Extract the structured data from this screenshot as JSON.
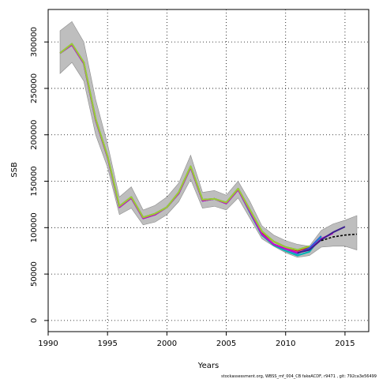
{
  "chart_data": {
    "type": "line",
    "xlabel": "Years",
    "ylabel": "SSB",
    "xlim": [
      1990,
      2017
    ],
    "ylim": [
      -12000,
      335000
    ],
    "x_ticks": [
      1990,
      1995,
      2000,
      2005,
      2010,
      2015
    ],
    "y_ticks": [
      0,
      50000,
      100000,
      150000,
      200000,
      250000,
      300000
    ],
    "grid": true,
    "footnote": "stockassessment.org, WBSS_mf_004_CB fakeACDF, r9471 , git: 792ca3e56499",
    "colors": {
      "band": "#bebebe",
      "band_edge": "#8c8c8c",
      "grid": "#000000",
      "dashed": "#000000"
    },
    "band": {
      "x": [
        1991,
        1992,
        1993,
        1994,
        1995,
        1996,
        1997,
        1998,
        1999,
        2000,
        2001,
        2002,
        2003,
        2004,
        2005,
        2006,
        2007,
        2008,
        2009,
        2010,
        2011,
        2012,
        2013,
        2014,
        2015,
        2016
      ],
      "upper": [
        312000,
        322000,
        300000,
        238000,
        190000,
        133000,
        144000,
        119000,
        124000,
        133000,
        148000,
        178000,
        138000,
        140000,
        135000,
        150000,
        128000,
        102000,
        92000,
        86000,
        82000,
        80000,
        97000,
        104000,
        108000,
        113000
      ],
      "lower": [
        266000,
        278000,
        258000,
        200000,
        165000,
        114000,
        121000,
        103000,
        106000,
        114000,
        128000,
        152000,
        121000,
        123000,
        119000,
        132000,
        110000,
        88000,
        80000,
        73000,
        68000,
        70000,
        79000,
        80000,
        80000,
        76000
      ]
    },
    "series": [
      {
        "color": "#e0002e",
        "x": [
          1991,
          1992,
          1993,
          1994,
          1995,
          1996,
          1997,
          1998,
          1999,
          2000,
          2001,
          2002,
          2003,
          2004,
          2005,
          2006,
          2007,
          2008,
          2009,
          2010,
          2011,
          2012
        ],
        "values": [
          288000,
          297000,
          277000,
          216000,
          176000,
          122000,
          132000,
          110000,
          114000,
          122000,
          137000,
          165000,
          129000,
          131000,
          126000,
          141000,
          118000,
          95000,
          85000,
          79000,
          75000,
          79000
        ]
      },
      {
        "color": "#228b22",
        "x": [
          1991,
          1992,
          1993,
          1994,
          1995,
          1996,
          1997,
          1998,
          1999,
          2000,
          2001,
          2002,
          2003,
          2004,
          2005,
          2006,
          2007,
          2008,
          2009,
          2010,
          2011,
          2012
        ],
        "values": [
          288000,
          298000,
          278000,
          217000,
          177000,
          123000,
          133000,
          111000,
          115000,
          122000,
          138000,
          166000,
          130000,
          131000,
          127000,
          142000,
          119000,
          96000,
          85000,
          79000,
          76000,
          80000
        ]
      },
      {
        "color": "#2f5be0",
        "x": [
          1991,
          1992,
          1993,
          1994,
          1995,
          1996,
          1997,
          1998,
          1999,
          2000,
          2001,
          2002,
          2003,
          2004,
          2005,
          2006,
          2007,
          2008,
          2009,
          2010,
          2011,
          2012,
          2013
        ],
        "values": [
          288000,
          297000,
          277000,
          216000,
          176000,
          122000,
          132000,
          110000,
          114000,
          122000,
          137000,
          165000,
          129000,
          131000,
          126000,
          141000,
          117000,
          93000,
          82000,
          77000,
          72000,
          78000,
          91000
        ]
      },
      {
        "color": "#00b3b3",
        "x": [
          1991,
          1992,
          1993,
          1994,
          1995,
          1996,
          1997,
          1998,
          1999,
          2000,
          2001,
          2002,
          2003,
          2004,
          2005,
          2006,
          2007,
          2008,
          2009,
          2010,
          2011,
          2012,
          2013
        ],
        "values": [
          288000,
          297000,
          277000,
          216000,
          176000,
          122000,
          132000,
          110000,
          114000,
          122000,
          137000,
          165000,
          129000,
          131000,
          126000,
          141000,
          116000,
          92000,
          81000,
          75000,
          70000,
          74000,
          90000
        ]
      },
      {
        "color": "#cc00cc",
        "x": [
          1991,
          1992,
          1993,
          1994,
          1995,
          1996,
          1997,
          1998,
          1999,
          2000,
          2001,
          2002,
          2003,
          2004,
          2005,
          2006,
          2007,
          2008,
          2009,
          2010,
          2011,
          2012,
          2013,
          2014
        ],
        "values": [
          288000,
          297000,
          277000,
          216000,
          176000,
          122000,
          132000,
          110000,
          114000,
          122000,
          137000,
          165000,
          129000,
          131000,
          126000,
          141000,
          117000,
          93000,
          82000,
          77000,
          73000,
          76000,
          88000,
          94000
        ]
      },
      {
        "color": "#3d1f8f",
        "x": [
          2011,
          2012,
          2013,
          2014,
          2015
        ],
        "values": [
          73000,
          76000,
          87000,
          95000,
          101000
        ]
      },
      {
        "color": "#9acd32",
        "x": [
          1991,
          1992,
          1993,
          1994,
          1995,
          1996,
          1997,
          1998,
          1999,
          2000,
          2001,
          2002,
          2003,
          2004,
          2005,
          2006,
          2007,
          2008,
          2009,
          2010,
          2011,
          2012
        ],
        "values": [
          288000,
          298000,
          278000,
          217000,
          177000,
          123000,
          133000,
          111000,
          115000,
          122000,
          138000,
          166000,
          130000,
          131000,
          127000,
          142000,
          119000,
          96000,
          85000,
          79000,
          76000,
          80000
        ]
      }
    ],
    "dashed_series": {
      "x": [
        2013,
        2014,
        2015,
        2016
      ],
      "values": [
        86000,
        90000,
        92000,
        93000
      ]
    }
  }
}
